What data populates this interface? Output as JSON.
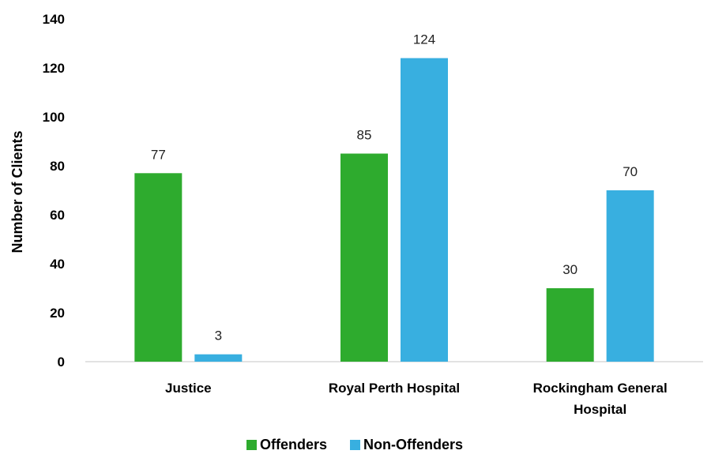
{
  "chart_data": {
    "type": "bar",
    "title": "",
    "xlabel": "",
    "ylabel": "Number of Clients",
    "ylim": [
      0,
      140
    ],
    "yticks": [
      0,
      20,
      40,
      60,
      80,
      100,
      120,
      140
    ],
    "grid": false,
    "legend_position": "bottom",
    "categories": [
      [
        "Justice"
      ],
      [
        "Royal Perth Hospital"
      ],
      [
        "Rockingham General",
        "Hospital"
      ]
    ],
    "series": [
      {
        "name": "Offenders",
        "color": "#2eab2e",
        "values": [
          77,
          85,
          30
        ]
      },
      {
        "name": "Non-Offenders",
        "color": "#38afe0",
        "values": [
          3,
          124,
          70
        ]
      }
    ]
  }
}
